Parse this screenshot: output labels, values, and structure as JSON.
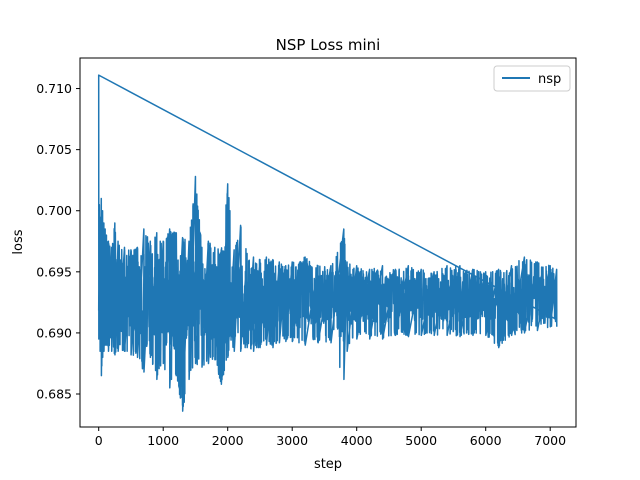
{
  "chart_data": {
    "type": "line",
    "title": "NSP Loss mini",
    "xlabel": "step",
    "ylabel": "loss",
    "xlim": [
      -290,
      7400
    ],
    "ylim": [
      0.6823,
      0.7125
    ],
    "xticks": [
      0,
      1000,
      2000,
      3000,
      4000,
      5000,
      6000,
      7000
    ],
    "xtick_labels": [
      "0",
      "1000",
      "2000",
      "3000",
      "4000",
      "5000",
      "6000",
      "7000"
    ],
    "yticks": [
      0.685,
      0.69,
      0.695,
      0.7,
      0.705,
      0.71
    ],
    "ytick_labels": [
      "0.685",
      "0.690",
      "0.695",
      "0.700",
      "0.705",
      "0.710"
    ],
    "legend": {
      "position": "top-right",
      "entries": [
        "nsp"
      ]
    },
    "grid": false,
    "series": [
      {
        "name": "nsp",
        "color": "#1f77b4",
        "x": [
          0,
          10,
          20,
          40,
          60,
          80,
          100,
          120,
          150,
          200,
          250,
          300,
          400,
          500,
          600,
          700,
          800,
          900,
          1000,
          1100,
          1200,
          1300,
          1400,
          1500,
          1600,
          1700,
          1800,
          1900,
          2000,
          2100,
          2200,
          2300,
          2400,
          2500,
          2600,
          2700,
          2800,
          2900,
          3000,
          3200,
          3400,
          3600,
          3800,
          3850,
          4000,
          4200,
          4400,
          4600,
          4800,
          5000,
          5200,
          5400,
          5600,
          5800,
          6000,
          6200,
          6400,
          6600,
          6800,
          7000,
          7100
        ],
        "upper": [
          0.7111,
          0.7005,
          0.6985,
          0.701,
          0.7,
          0.699,
          0.6985,
          0.698,
          0.6975,
          0.697,
          0.699,
          0.6975,
          0.697,
          0.6968,
          0.697,
          0.6985,
          0.6975,
          0.6982,
          0.6975,
          0.6985,
          0.6982,
          0.6978,
          0.6975,
          0.7028,
          0.697,
          0.6975,
          0.697,
          0.6968,
          0.7022,
          0.6968,
          0.6988,
          0.6965,
          0.6962,
          0.696,
          0.6962,
          0.696,
          0.6958,
          0.6955,
          0.6958,
          0.6962,
          0.6955,
          0.6955,
          0.6985,
          0.6958,
          0.6955,
          0.6952,
          0.6955,
          0.6952,
          0.6955,
          0.6952,
          0.695,
          0.6955,
          0.6955,
          0.6952,
          0.695,
          0.6952,
          0.6955,
          0.6962,
          0.6958,
          0.6955,
          0.6952
        ],
        "lower": [
          0.6895,
          0.69,
          0.6885,
          0.6865,
          0.688,
          0.6885,
          0.689,
          0.689,
          0.6885,
          0.6885,
          0.6882,
          0.6885,
          0.6885,
          0.6882,
          0.688,
          0.6868,
          0.688,
          0.6862,
          0.6875,
          0.6855,
          0.6865,
          0.6836,
          0.6862,
          0.6875,
          0.6872,
          0.6875,
          0.6878,
          0.6858,
          0.688,
          0.6885,
          0.6885,
          0.6888,
          0.6885,
          0.6888,
          0.689,
          0.6888,
          0.6892,
          0.6893,
          0.6893,
          0.689,
          0.6892,
          0.6892,
          0.6862,
          0.6885,
          0.6895,
          0.6895,
          0.6895,
          0.6898,
          0.6897,
          0.6898,
          0.6898,
          0.6898,
          0.6897,
          0.6898,
          0.6898,
          0.6888,
          0.6898,
          0.69,
          0.6902,
          0.6905,
          0.6905
        ],
        "center": 0.6928
      }
    ]
  }
}
